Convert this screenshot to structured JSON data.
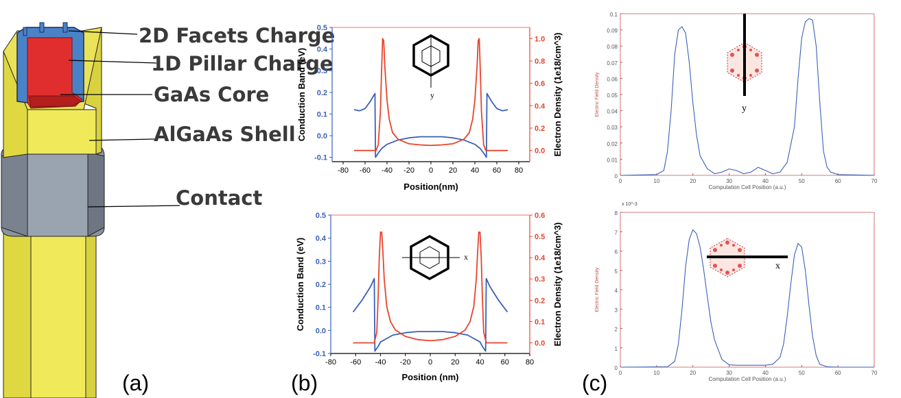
{
  "panel_a": {
    "labels": [
      "2D Facets Charge",
      "1D Pillar Charge",
      "GaAs Core",
      "AlGaAs Shell",
      "Contact"
    ],
    "caption": "(a)"
  },
  "panel_b": {
    "caption": "(b)",
    "inset_top_axis": "y",
    "inset_bottom_axis": "x"
  },
  "panel_c": {
    "caption": "(c)",
    "inset_top_axis": "y",
    "inset_bottom_axis": "x",
    "exponent_label": "x 10^-3"
  },
  "colors": {
    "blue": "#3a5fb8",
    "red": "#e8432c",
    "axis_red": "#e8432c",
    "gold": "#e8e04a"
  },
  "chart_data": [
    {
      "type": "line",
      "panel": "b-top",
      "xlabel": "Position(nm)",
      "ylabel": "Conduction Band (eV)",
      "y2label": "Electron Density (1e18/cm^3)",
      "xlim": [
        -90,
        90
      ],
      "ylim": [
        -0.12,
        0.5
      ],
      "y2lim": [
        -0.1,
        1.1
      ],
      "xticks": [
        -80,
        -60,
        -40,
        -20,
        0,
        20,
        40,
        60,
        80
      ],
      "yticks": [
        -0.1,
        0.0,
        0.1,
        0.2,
        0.3,
        0.4,
        0.5
      ],
      "y2ticks": [
        0.0,
        0.2,
        0.4,
        0.6,
        0.8,
        1.0
      ],
      "series": [
        {
          "axis": "left",
          "color": "blue",
          "x": [
            -70,
            -65,
            -60,
            -55,
            -51,
            -50.5,
            -48,
            -45,
            -40,
            -30,
            -20,
            -10,
            0,
            10,
            20,
            30,
            40,
            45,
            48,
            50.5,
            51,
            55,
            60,
            65,
            70
          ],
          "y": [
            0.12,
            0.115,
            0.125,
            0.16,
            0.195,
            -0.1,
            -0.08,
            -0.06,
            -0.04,
            -0.02,
            -0.01,
            -0.005,
            -0.005,
            -0.005,
            -0.01,
            -0.02,
            -0.04,
            -0.06,
            -0.08,
            -0.1,
            0.195,
            0.16,
            0.125,
            0.115,
            0.12
          ]
        },
        {
          "axis": "right",
          "color": "red",
          "x": [
            -70,
            -55,
            -50,
            -48,
            -46,
            -45,
            -44,
            -43,
            -42,
            -40,
            -38,
            -35,
            -30,
            -20,
            -10,
            0,
            10,
            20,
            30,
            35,
            38,
            40,
            42,
            43,
            44,
            45,
            46,
            48,
            50,
            55,
            70
          ],
          "y": [
            0.0,
            0.0,
            0.0,
            0.05,
            0.35,
            0.7,
            1.0,
            0.98,
            0.75,
            0.45,
            0.28,
            0.16,
            0.1,
            0.06,
            0.05,
            0.045,
            0.05,
            0.06,
            0.1,
            0.16,
            0.28,
            0.45,
            0.75,
            0.98,
            1.0,
            0.7,
            0.35,
            0.05,
            0.0,
            0.0,
            0.0
          ]
        }
      ]
    },
    {
      "type": "line",
      "panel": "b-bottom",
      "xlabel": "Position (nm)",
      "ylabel": "Conduction Band (eV)",
      "y2label": "Electron Density (1e18/cm^3)",
      "xlim": [
        -80,
        80
      ],
      "ylim": [
        -0.1,
        0.5
      ],
      "y2lim": [
        -0.05,
        0.6
      ],
      "xticks": [
        -80,
        -60,
        -40,
        -20,
        0,
        20,
        40,
        60,
        80
      ],
      "yticks": [
        -0.1,
        0.0,
        0.1,
        0.2,
        0.3,
        0.4,
        0.5
      ],
      "y2ticks": [
        0.0,
        0.1,
        0.2,
        0.3,
        0.4,
        0.5,
        0.6
      ],
      "series": [
        {
          "axis": "left",
          "color": "blue",
          "x": [
            -62,
            -55,
            -48,
            -45,
            -44.5,
            -42,
            -40,
            -35,
            -30,
            -20,
            -10,
            0,
            10,
            20,
            30,
            35,
            40,
            42,
            44.5,
            45,
            48,
            55,
            62
          ],
          "y": [
            0.08,
            0.13,
            0.19,
            0.225,
            -0.09,
            -0.07,
            -0.05,
            -0.035,
            -0.02,
            -0.01,
            -0.005,
            -0.005,
            -0.005,
            -0.01,
            -0.02,
            -0.035,
            -0.05,
            -0.07,
            -0.09,
            0.225,
            0.19,
            0.13,
            0.08
          ]
        },
        {
          "axis": "right",
          "color": "red",
          "x": [
            -62,
            -48,
            -45,
            -43,
            -42,
            -41,
            -40,
            -39,
            -38,
            -37,
            -35,
            -32,
            -28,
            -20,
            -10,
            0,
            10,
            20,
            28,
            32,
            35,
            37,
            38,
            39,
            40,
            41,
            42,
            43,
            45,
            48,
            62
          ],
          "y": [
            0.0,
            0.0,
            0.0,
            0.05,
            0.2,
            0.4,
            0.52,
            0.52,
            0.42,
            0.3,
            0.17,
            0.1,
            0.06,
            0.03,
            0.015,
            0.01,
            0.015,
            0.03,
            0.06,
            0.1,
            0.17,
            0.3,
            0.42,
            0.52,
            0.52,
            0.4,
            0.2,
            0.05,
            0.0,
            0.0,
            0.0
          ]
        }
      ]
    },
    {
      "type": "line",
      "panel": "c-top",
      "xlabel": "Computation Cell Position (a.u.)",
      "ylabel": "Electric Field Density",
      "xlim": [
        0,
        70
      ],
      "ylim": [
        0,
        0.1
      ],
      "xticks": [
        0,
        10,
        20,
        30,
        40,
        50,
        60,
        70
      ],
      "yticks": [
        0,
        0.01,
        0.02,
        0.03,
        0.04,
        0.05,
        0.06,
        0.07,
        0.08,
        0.09,
        0.1
      ],
      "series": [
        {
          "color": "blue",
          "x": [
            0,
            10,
            12,
            13,
            14,
            15,
            16,
            17,
            18,
            19,
            20,
            21,
            22,
            24,
            26,
            28,
            30,
            32,
            34,
            36,
            38,
            40,
            42,
            44,
            46,
            48,
            49,
            50,
            51,
            52,
            53,
            54,
            55,
            56,
            57,
            58,
            60,
            70
          ],
          "y": [
            0,
            0.0005,
            0.003,
            0.015,
            0.04,
            0.075,
            0.09,
            0.092,
            0.088,
            0.07,
            0.045,
            0.025,
            0.012,
            0.004,
            0.001,
            0.002,
            0.004,
            0.003,
            0.001,
            0.002,
            0.005,
            0.003,
            0.001,
            0.002,
            0.008,
            0.03,
            0.06,
            0.085,
            0.095,
            0.097,
            0.096,
            0.08,
            0.045,
            0.015,
            0.005,
            0.002,
            0.0005,
            0
          ]
        }
      ]
    },
    {
      "type": "line",
      "panel": "c-bottom",
      "xlabel": "Computation Cell Position (a.u.)",
      "ylabel": "Electric Field Density",
      "xlim": [
        0,
        70
      ],
      "ylim": [
        0,
        8
      ],
      "xticks": [
        0,
        10,
        20,
        30,
        40,
        50,
        60,
        70
      ],
      "yticks": [
        0,
        1,
        2,
        3,
        4,
        5,
        6,
        7,
        8
      ],
      "series": [
        {
          "color": "blue",
          "x": [
            0,
            13,
            15,
            16,
            17,
            18,
            19,
            20,
            21,
            22,
            23,
            24,
            25,
            26,
            28,
            30,
            32,
            36,
            40,
            42,
            44,
            45,
            46,
            47,
            48,
            49,
            50,
            51,
            52,
            53,
            54,
            55,
            57,
            60,
            70
          ],
          "y": [
            0,
            0.02,
            0.3,
            1.2,
            3.0,
            5.2,
            6.6,
            7.1,
            6.9,
            6.2,
            5.0,
            3.6,
            2.3,
            1.4,
            0.4,
            0.12,
            0.1,
            0.1,
            0.1,
            0.15,
            0.5,
            1.2,
            2.6,
            4.3,
            5.8,
            6.4,
            6.2,
            5.0,
            3.2,
            1.6,
            0.6,
            0.15,
            0.02,
            0,
            0
          ]
        }
      ]
    }
  ]
}
